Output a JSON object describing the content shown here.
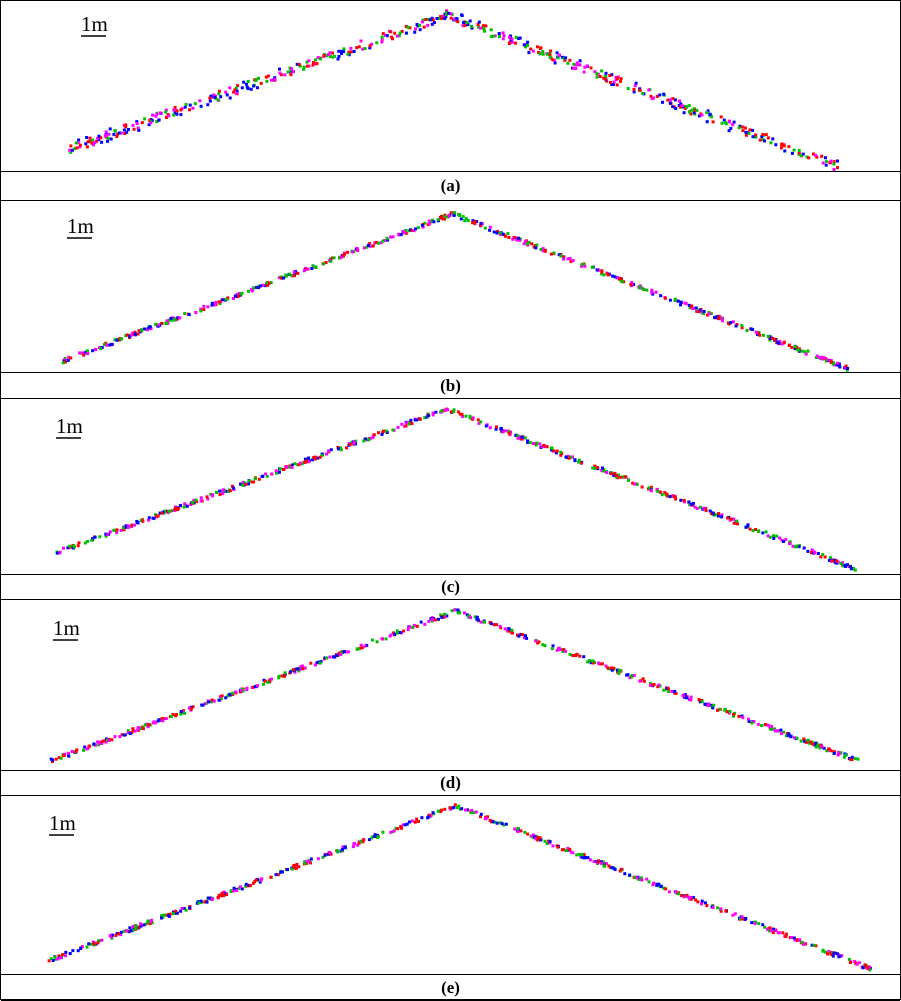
{
  "figure": {
    "scale_label": "1m",
    "point_colors": [
      "#0000ff",
      "#ff0000",
      "#00c000",
      "#ff00ff"
    ],
    "panels": [
      {
        "caption": "(a)"
      },
      {
        "caption": "(b)"
      },
      {
        "caption": "(c)"
      },
      {
        "caption": "(d)"
      },
      {
        "caption": "(e)"
      }
    ]
  }
}
